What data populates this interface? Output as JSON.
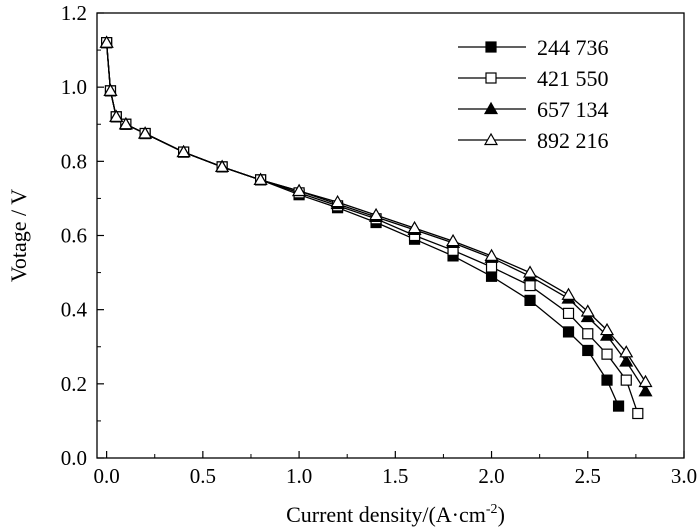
{
  "chart_data": {
    "type": "line",
    "title": "",
    "xlabel": "Current density/(A·cm",
    "xlabel_sup": "-2",
    "xlabel_end": ")",
    "ylabel": "Votage / V",
    "xlim": [
      -0.05,
      3.0
    ],
    "ylim": [
      0.0,
      1.2
    ],
    "xticks": [
      0.0,
      0.5,
      1.0,
      1.5,
      2.0,
      2.5,
      3.0
    ],
    "yticks": [
      0.0,
      0.2,
      0.4,
      0.6,
      0.8,
      1.0,
      1.2
    ],
    "xtick_labels": [
      "0.0",
      "0.5",
      "1.0",
      "1.5",
      "2.0",
      "2.5",
      "3.0"
    ],
    "ytick_labels": [
      "0.0",
      "0.2",
      "0.4",
      "0.6",
      "0.8",
      "1.0",
      "1.2"
    ],
    "grid": false,
    "legend_position": "top-right",
    "series": [
      {
        "name": "244 736",
        "marker": "square-filled",
        "points": [
          [
            0.0,
            1.12
          ],
          [
            0.02,
            0.99
          ],
          [
            0.05,
            0.92
          ],
          [
            0.1,
            0.9
          ],
          [
            0.2,
            0.875
          ],
          [
            0.4,
            0.825
          ],
          [
            0.6,
            0.785
          ],
          [
            0.8,
            0.75
          ],
          [
            1.0,
            0.71
          ],
          [
            1.2,
            0.675
          ],
          [
            1.4,
            0.635
          ],
          [
            1.6,
            0.59
          ],
          [
            1.8,
            0.545
          ],
          [
            2.0,
            0.49
          ],
          [
            2.2,
            0.425
          ],
          [
            2.4,
            0.34
          ],
          [
            2.5,
            0.29
          ],
          [
            2.6,
            0.21
          ],
          [
            2.66,
            0.14
          ]
        ]
      },
      {
        "name": "421 550",
        "marker": "square-open",
        "points": [
          [
            0.0,
            1.12
          ],
          [
            0.02,
            0.99
          ],
          [
            0.05,
            0.92
          ],
          [
            0.1,
            0.9
          ],
          [
            0.2,
            0.875
          ],
          [
            0.4,
            0.825
          ],
          [
            0.6,
            0.785
          ],
          [
            0.8,
            0.75
          ],
          [
            1.0,
            0.715
          ],
          [
            1.2,
            0.68
          ],
          [
            1.4,
            0.645
          ],
          [
            1.6,
            0.6
          ],
          [
            1.8,
            0.56
          ],
          [
            2.0,
            0.515
          ],
          [
            2.2,
            0.465
          ],
          [
            2.4,
            0.39
          ],
          [
            2.5,
            0.335
          ],
          [
            2.6,
            0.28
          ],
          [
            2.7,
            0.21
          ],
          [
            2.76,
            0.12
          ]
        ]
      },
      {
        "name": "657 134",
        "marker": "triangle-filled",
        "points": [
          [
            0.0,
            1.12
          ],
          [
            0.02,
            0.99
          ],
          [
            0.05,
            0.92
          ],
          [
            0.1,
            0.9
          ],
          [
            0.2,
            0.875
          ],
          [
            0.4,
            0.825
          ],
          [
            0.6,
            0.785
          ],
          [
            0.8,
            0.75
          ],
          [
            1.0,
            0.72
          ],
          [
            1.2,
            0.685
          ],
          [
            1.4,
            0.65
          ],
          [
            1.6,
            0.615
          ],
          [
            1.8,
            0.58
          ],
          [
            2.0,
            0.54
          ],
          [
            2.2,
            0.49
          ],
          [
            2.4,
            0.43
          ],
          [
            2.5,
            0.38
          ],
          [
            2.6,
            0.33
          ],
          [
            2.7,
            0.26
          ],
          [
            2.8,
            0.18
          ]
        ]
      },
      {
        "name": "892 216",
        "marker": "triangle-open",
        "points": [
          [
            0.0,
            1.12
          ],
          [
            0.02,
            0.99
          ],
          [
            0.05,
            0.92
          ],
          [
            0.1,
            0.9
          ],
          [
            0.2,
            0.875
          ],
          [
            0.4,
            0.825
          ],
          [
            0.6,
            0.785
          ],
          [
            0.8,
            0.75
          ],
          [
            1.0,
            0.72
          ],
          [
            1.2,
            0.69
          ],
          [
            1.4,
            0.655
          ],
          [
            1.6,
            0.62
          ],
          [
            1.8,
            0.585
          ],
          [
            2.0,
            0.545
          ],
          [
            2.2,
            0.5
          ],
          [
            2.4,
            0.44
          ],
          [
            2.5,
            0.395
          ],
          [
            2.6,
            0.345
          ],
          [
            2.7,
            0.285
          ],
          [
            2.8,
            0.205
          ]
        ]
      }
    ]
  }
}
